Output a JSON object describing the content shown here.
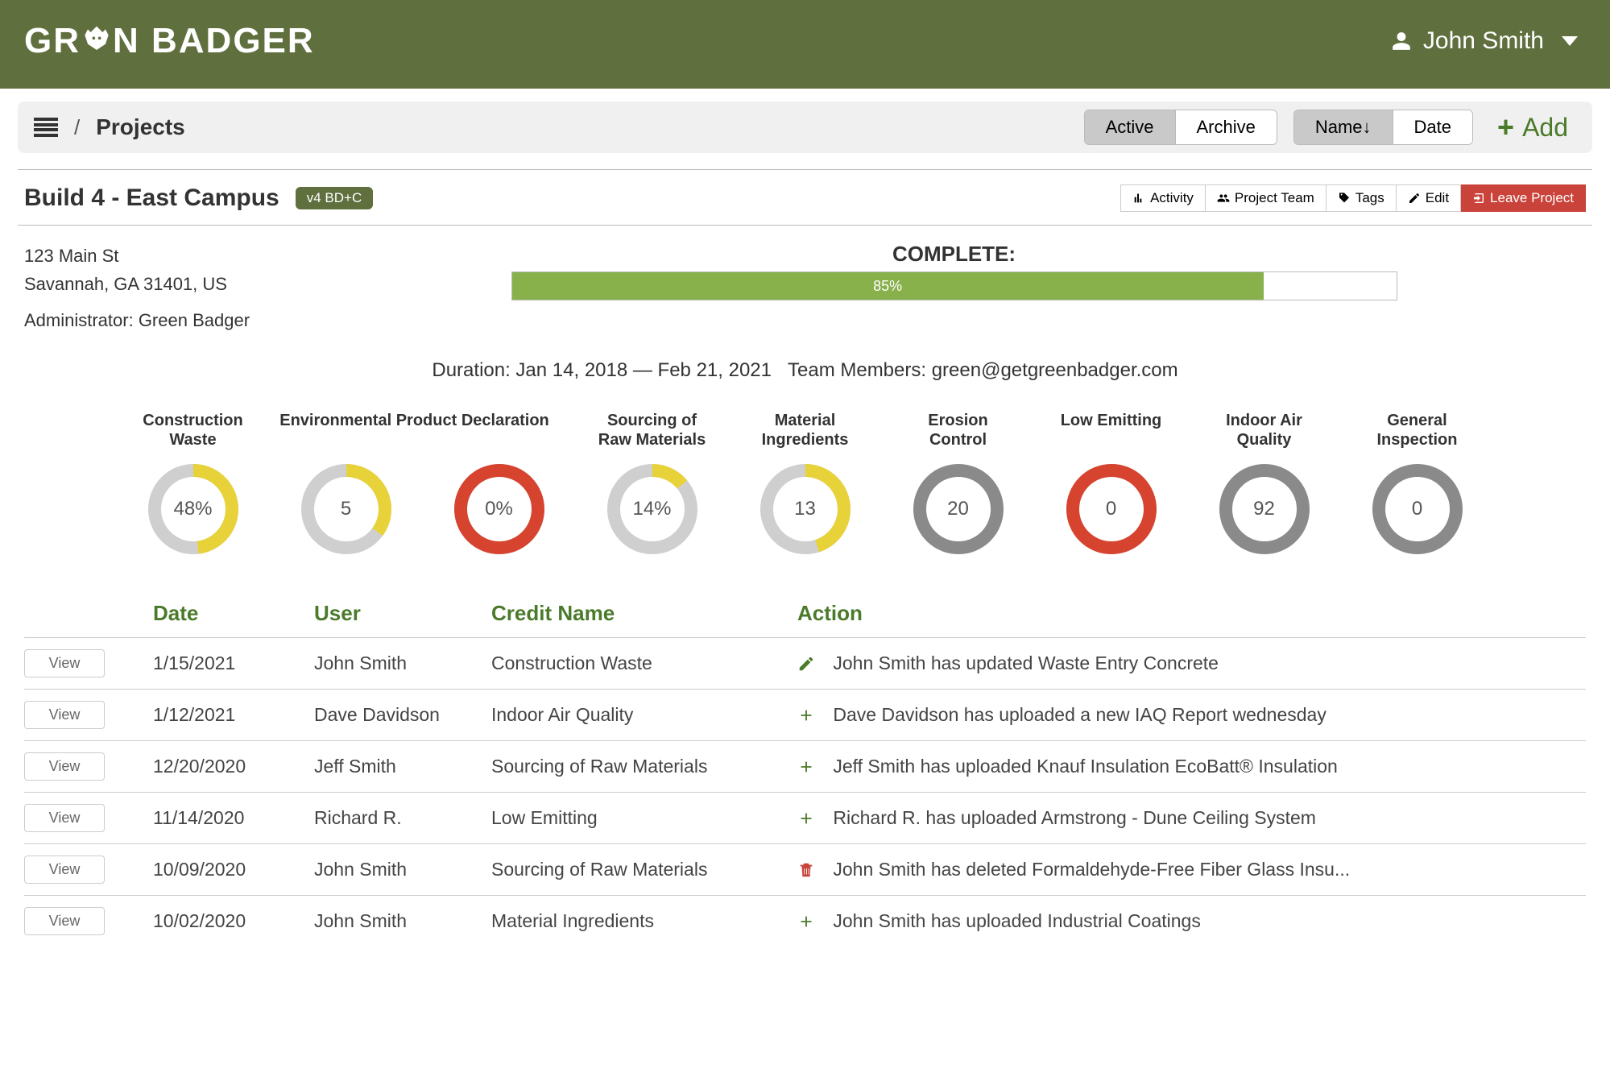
{
  "brand": "GREEN BADGER",
  "user": {
    "name": "John Smith"
  },
  "crumb": {
    "title": "Projects"
  },
  "filters": {
    "active": "Active",
    "archive": "Archive",
    "name": "Name↓",
    "date": "Date",
    "add": "Add"
  },
  "project": {
    "title": "Build 4 - East Campus",
    "badge": "v4 BD+C",
    "actions": {
      "activity": "Activity",
      "team": "Project Team",
      "tags": "Tags",
      "edit": "Edit",
      "leave": "Leave Project"
    },
    "address1": "123 Main St",
    "address2": "Savannah, GA 31401, US",
    "admin_label": "Administrator: Green Badger",
    "complete_label": "COMPLETE:",
    "progress_pct": 85,
    "progress_text": "85%",
    "meta": "Duration: Jan 14, 2018 — Feb 21, 2021   Team Members: green@getgreenbadger.com"
  },
  "donuts": [
    {
      "title": "Construction Waste",
      "value": "48%",
      "pct": 48,
      "color": "#e8d23a",
      "track": "#cfcfcf"
    },
    {
      "title": "Environmental Product Declaration",
      "value": "5",
      "pct": 35,
      "color": "#e8d23a",
      "track": "#cfcfcf"
    },
    {
      "title": "",
      "value": "0%",
      "pct": 100,
      "color": "#d64430",
      "track": "#cfcfcf"
    },
    {
      "title": "Sourcing of Raw Materials",
      "value": "14%",
      "pct": 14,
      "color": "#e8d23a",
      "track": "#cfcfcf"
    },
    {
      "title": "Material Ingredients",
      "value": "13",
      "pct": 45,
      "color": "#e8d23a",
      "track": "#cfcfcf"
    },
    {
      "title": "Erosion Control",
      "value": "20",
      "pct": 0,
      "color": "#8a8a8a",
      "track": "#8a8a8a"
    },
    {
      "title": "Low Emitting",
      "value": "0",
      "pct": 100,
      "color": "#d64430",
      "track": "#cfcfcf"
    },
    {
      "title": "Indoor Air Quality",
      "value": "92",
      "pct": 0,
      "color": "#8a8a8a",
      "track": "#8a8a8a"
    },
    {
      "title": "General Inspection",
      "value": "0",
      "pct": 0,
      "color": "#8a8a8a",
      "track": "#8a8a8a"
    }
  ],
  "donut_merge_second_title": true,
  "table": {
    "headers": {
      "date": "Date",
      "user": "User",
      "credit": "Credit Name",
      "action": "Action"
    },
    "view_label": "View",
    "rows": [
      {
        "date": "1/15/2021",
        "user": "John Smith",
        "credit": "Construction Waste",
        "icon": "edit",
        "text": "John Smith has updated Waste Entry Concrete"
      },
      {
        "date": "1/12/2021",
        "user": "Dave Davidson",
        "credit": "Indoor Air Quality",
        "icon": "plus",
        "text": "Dave Davidson has uploaded a new IAQ Report wednesday"
      },
      {
        "date": "12/20/2020",
        "user": "Jeff Smith",
        "credit": "Sourcing of Raw Materials",
        "icon": "plus",
        "text": "Jeff Smith has uploaded Knauf Insulation EcoBatt® Insulation"
      },
      {
        "date": "11/14/2020",
        "user": "Richard R.",
        "credit": "Low Emitting",
        "icon": "plus",
        "text": "Richard R. has uploaded Armstrong - Dune Ceiling System"
      },
      {
        "date": "10/09/2020",
        "user": "John Smith",
        "credit": "Sourcing of Raw Materials",
        "icon": "trash",
        "text": "John Smith has deleted Formaldehyde-Free Fiber Glass Insu..."
      },
      {
        "date": "10/02/2020",
        "user": "John Smith",
        "credit": "Material Ingredients",
        "icon": "plus",
        "text": "John Smith has uploaded Industrial Coatings"
      }
    ]
  }
}
